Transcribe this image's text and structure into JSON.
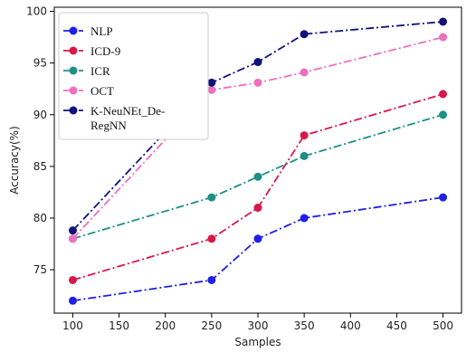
{
  "chart_data": {
    "type": "line",
    "xlabel": "Samples",
    "ylabel": "Accuracy(%)",
    "xlim": [
      80,
      520
    ],
    "ylim": [
      70.8,
      100.4
    ],
    "xticks": [
      100,
      150,
      200,
      250,
      300,
      350,
      400,
      450,
      500
    ],
    "yticks": [
      75,
      80,
      85,
      90,
      95,
      100
    ],
    "grid": false,
    "legend_position": "top-left",
    "x": [
      100,
      250,
      300,
      350,
      500
    ],
    "series": [
      {
        "name": "NLP",
        "color": "#1f1fe6",
        "dash": "dashdot",
        "values": [
          72,
          74,
          78,
          80,
          82
        ]
      },
      {
        "name": "ICD-9",
        "color": "#d9184a",
        "dash": "dashdot",
        "values": [
          74,
          78,
          81,
          88,
          92
        ]
      },
      {
        "name": "ICR",
        "color": "#1e8f85",
        "dash": "dashdot",
        "values": [
          78,
          82,
          84,
          86,
          90
        ]
      },
      {
        "name": "OCT",
        "color": "#ee6fbf",
        "dash": "dashdot",
        "values": [
          78,
          92.4,
          93.1,
          94.1,
          97.5
        ]
      },
      {
        "name": "K-NeuNEt_De-RegNN",
        "color": "#12127a",
        "dash": "dashdot",
        "values": [
          78.8,
          93.1,
          95.1,
          97.8,
          99
        ]
      }
    ]
  }
}
